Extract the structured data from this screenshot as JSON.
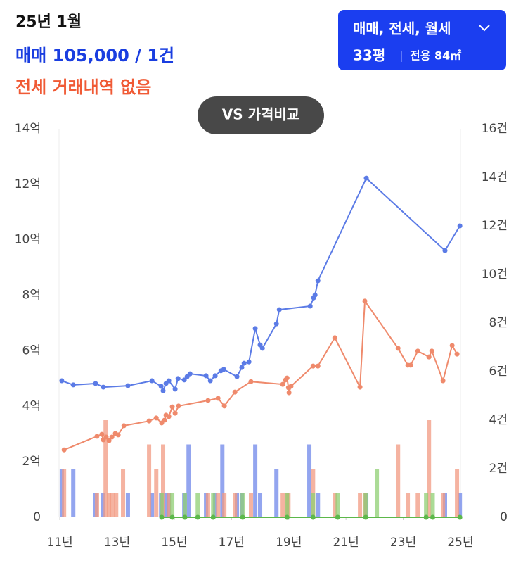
{
  "header": {
    "month": "25년 1월",
    "sale": "매매 105,000 / 1건",
    "jeonse": "전세 거래내역 없음"
  },
  "filter": {
    "label": "매매, 전세, 월세",
    "size": "33평",
    "area": "전용 84㎡"
  },
  "compare": "VS 가격비교",
  "chart_data": {
    "type": "combo",
    "xlim": [
      10.9,
      25.05
    ],
    "xticks": [
      {
        "value": 11,
        "label": "11년"
      },
      {
        "value": 13,
        "label": "13년"
      },
      {
        "value": 15,
        "label": "15년"
      },
      {
        "value": 17,
        "label": "17년"
      },
      {
        "value": 19,
        "label": "19년"
      },
      {
        "value": 21,
        "label": "21년"
      },
      {
        "value": 23,
        "label": "23년"
      },
      {
        "value": 25,
        "label": "25년"
      }
    ],
    "ylim": [
      0,
      14
    ],
    "yticks": [
      0,
      {
        "value": 2,
        "label": "2억"
      },
      {
        "value": 4,
        "label": "4억"
      },
      {
        "value": 6,
        "label": "6억"
      },
      {
        "value": 8,
        "label": "8억"
      },
      {
        "value": 10,
        "label": "10억"
      },
      {
        "value": 12,
        "label": "12억"
      },
      {
        "value": 14,
        "label": "14억"
      }
    ],
    "y2lim": [
      0,
      16
    ],
    "y2ticks": [
      0,
      {
        "value": 2,
        "label": "2건"
      },
      {
        "value": 4,
        "label": "4건"
      },
      {
        "value": 6,
        "label": "6건"
      },
      {
        "value": 8,
        "label": "8건"
      },
      {
        "value": 10,
        "label": "10건"
      },
      {
        "value": 12,
        "label": "12건"
      },
      {
        "value": 14,
        "label": "14건"
      },
      {
        "value": 16,
        "label": "16건"
      }
    ],
    "series": [
      {
        "type": "bar",
        "axis": "y2",
        "color": "#6f87ea",
        "x": [
          11.07,
          11.47,
          12.25,
          12.52,
          13.38,
          14.22,
          14.54,
          14.71,
          14.81,
          15.35,
          15.5,
          16.11,
          16.43,
          16.68,
          17.19,
          17.36,
          17.83,
          18.0,
          18.57,
          19.72,
          20.02,
          21.71,
          24.46,
          24.98
        ],
        "values": [
          2,
          2,
          1,
          1,
          1,
          1,
          1,
          1,
          1,
          1,
          3,
          1,
          1,
          3,
          1,
          1,
          3,
          1,
          2,
          3,
          1,
          1,
          1,
          1
        ]
      },
      {
        "type": "bar",
        "axis": "y2",
        "color": "#f29a82",
        "x": [
          11.15,
          12.3,
          12.6,
          12.72,
          12.84,
          12.97,
          13.21,
          14.12,
          14.37,
          14.61,
          14.81,
          16.18,
          16.53,
          16.75,
          17.12,
          17.68,
          18.79,
          18.94,
          18.99,
          19.85,
          20.61,
          21.49,
          21.66,
          22.82,
          23.16,
          23.51,
          23.9,
          24.39,
          24.88
        ],
        "values": [
          2,
          1,
          4,
          1,
          1,
          1,
          2,
          3,
          2,
          3,
          1,
          1,
          1,
          1,
          1,
          1,
          1,
          1,
          1,
          2,
          1,
          1,
          1,
          3,
          1,
          1,
          4,
          1,
          2
        ]
      },
      {
        "type": "bar",
        "axis": "y2",
        "color": "#8fcf73",
        "x": [
          14.56,
          14.93,
          15.37,
          15.82,
          16.36,
          17.39,
          18.94,
          19.85,
          20.71,
          21.69,
          22.08,
          23.8,
          24.03
        ],
        "values": [
          1,
          1,
          1,
          1,
          1,
          1,
          1,
          1,
          1,
          1,
          2,
          1,
          1
        ]
      },
      {
        "type": "line",
        "color": "#5b7be6",
        "x": [
          11.07,
          11.47,
          12.25,
          12.52,
          13.38,
          14.22,
          14.54,
          14.61,
          14.71,
          14.81,
          15.03,
          15.13,
          15.35,
          15.45,
          15.55,
          16.11,
          16.26,
          16.43,
          16.63,
          16.73,
          17.19,
          17.36,
          17.44,
          17.61,
          17.83,
          18.0,
          18.08,
          18.57,
          18.67,
          19.75,
          19.87,
          19.92,
          20.02,
          21.71,
          24.46,
          24.98
        ],
        "values": [
          4.92,
          4.77,
          4.82,
          4.69,
          4.74,
          4.92,
          4.72,
          4.56,
          4.82,
          4.92,
          4.62,
          5.0,
          4.95,
          5.07,
          5.17,
          5.1,
          4.92,
          5.1,
          5.28,
          5.33,
          5.07,
          5.4,
          5.55,
          5.6,
          6.8,
          6.21,
          6.09,
          6.97,
          7.48,
          7.61,
          7.91,
          8.01,
          8.52,
          12.22,
          9.61,
          10.5
        ]
      },
      {
        "type": "line",
        "color": "#ef8a6c",
        "x": [
          11.15,
          12.3,
          12.47,
          12.52,
          12.62,
          12.72,
          12.82,
          12.94,
          13.04,
          13.24,
          14.12,
          14.37,
          14.56,
          14.66,
          14.71,
          14.81,
          14.93,
          15.03,
          15.15,
          16.18,
          16.53,
          16.75,
          17.12,
          17.68,
          18.79,
          18.89,
          18.94,
          18.99,
          19.01,
          19.08,
          19.85,
          20.02,
          20.61,
          21.49,
          21.66,
          22.82,
          23.16,
          23.26,
          23.51,
          23.9,
          24.0,
          24.39,
          24.71,
          24.88
        ],
        "values": [
          2.43,
          2.92,
          2.99,
          2.79,
          2.89,
          2.76,
          2.89,
          3.02,
          2.97,
          3.3,
          3.47,
          3.58,
          3.4,
          3.5,
          3.68,
          3.63,
          3.98,
          3.75,
          4.01,
          4.21,
          4.29,
          4.01,
          4.51,
          4.89,
          4.79,
          4.95,
          5.02,
          4.67,
          4.49,
          4.72,
          5.45,
          5.45,
          6.47,
          4.69,
          7.79,
          6.09,
          5.48,
          5.48,
          5.99,
          5.78,
          5.99,
          4.92,
          6.19,
          5.88
        ]
      },
      {
        "type": "line",
        "color": "#5cb84a",
        "x": [
          14.56,
          14.93,
          15.37,
          15.82,
          16.36,
          17.39,
          18.94,
          19.85,
          20.71,
          21.69,
          23.8,
          24.03,
          24.98
        ],
        "values": [
          0,
          0,
          0,
          0,
          0,
          0,
          0,
          0,
          0,
          0,
          0,
          0,
          0
        ]
      }
    ]
  }
}
